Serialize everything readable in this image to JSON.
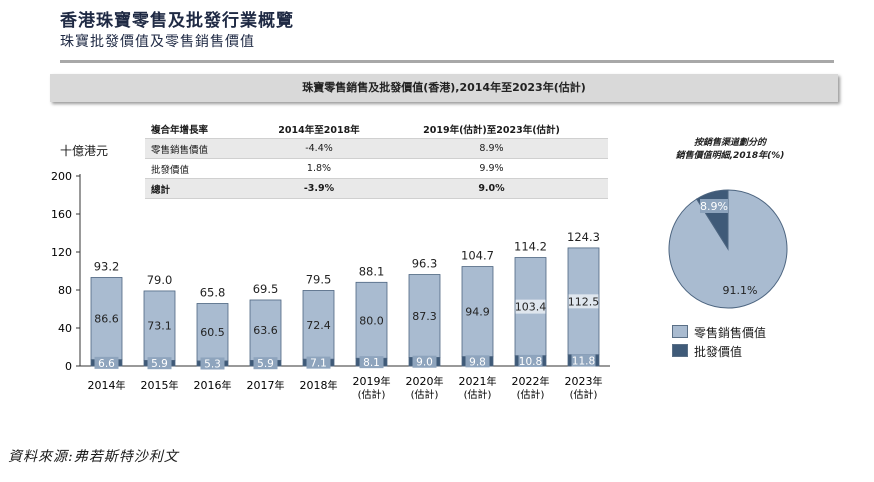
{
  "title": "香港珠寶零售及批發行業概覽",
  "subtitle": "珠寶批發價值及零售銷售價值",
  "banner": "珠寶零售銷售及批發價值(香港),2014年至2023年(估計)",
  "unit_label": "十億港元",
  "cagr_table": {
    "header": [
      "複合年增長率",
      "2014年至2018年",
      "2019年(估計)至2023年(估計)"
    ],
    "rows": [
      {
        "label": "零售銷售價值",
        "a": "-4.4%",
        "b": "8.9%"
      },
      {
        "label": "批發價值",
        "a": "1.8%",
        "b": "9.9%"
      },
      {
        "label": "總計",
        "a": "-3.9%",
        "b": "9.0%"
      }
    ]
  },
  "chart_data": [
    {
      "type": "bar",
      "stacked": true,
      "categories": [
        "2014年",
        "2015年",
        "2016年",
        "2017年",
        "2018年",
        "2019年(估計)",
        "2020年(估計)",
        "2021年(估計)",
        "2022年(估計)",
        "2023年(估計)"
      ],
      "category_main": [
        "2014",
        "2015",
        "2016",
        "2017",
        "2018",
        "2019",
        "2020",
        "2021",
        "2022",
        "2023"
      ],
      "category_suffix": "年",
      "category_note": "(估計)",
      "estimated_from_index": 5,
      "series": [
        {
          "name": "批發價值",
          "values": [
            6.6,
            5.9,
            5.3,
            5.9,
            7.1,
            8.1,
            9.0,
            9.8,
            10.8,
            11.8
          ]
        },
        {
          "name": "零售銷售價值",
          "values": [
            86.6,
            73.1,
            60.5,
            63.6,
            72.4,
            80.0,
            87.3,
            94.9,
            103.4,
            112.5
          ]
        }
      ],
      "totals": [
        93.2,
        79.0,
        65.8,
        69.5,
        79.5,
        88.1,
        96.3,
        104.7,
        114.2,
        124.3
      ],
      "total_labels": [
        "93.2",
        "79.0",
        "65.8",
        "69.5",
        "79.5",
        "88.1",
        "96.3",
        "104.7",
        "114.2",
        "124.3"
      ],
      "retail_labels": [
        "86.6",
        "73.1",
        "60.5",
        "63.6",
        "72.4",
        "80.0",
        "87.3",
        "94.9",
        "103.4",
        "112.5"
      ],
      "wholesale_labels": [
        "6.6",
        "5.9",
        "5.3",
        "5.9",
        "7.1",
        "8.1",
        "9.0",
        "9.8",
        "10.8",
        "11.8"
      ],
      "yticks": [
        0,
        40,
        80,
        120,
        160,
        200
      ],
      "ylim": [
        0,
        200
      ],
      "ylabel": "十億港元"
    },
    {
      "type": "pie",
      "title": "按銷售渠道劃分的銷售價值明細,2018年(%)",
      "title_line1": "按銷售渠道劃分的",
      "title_line2": "銷售價值明細,2018年(%)",
      "slices": [
        {
          "name": "零售銷售價值",
          "value": 91.1,
          "label": "91.1%"
        },
        {
          "name": "批發價值",
          "value": 8.9,
          "label": "8.9%"
        }
      ]
    }
  ],
  "legend": [
    {
      "name": "零售銷售價值",
      "color": "#a9bbd0"
    },
    {
      "name": "批發價值",
      "color": "#3f5a78"
    }
  ],
  "colors": {
    "retail": "#a9bbd0",
    "wholesale": "#3f5a78",
    "outline": "#4d6580",
    "title": "#1f2a44"
  },
  "source": "資料來源:弗若斯特沙利文"
}
